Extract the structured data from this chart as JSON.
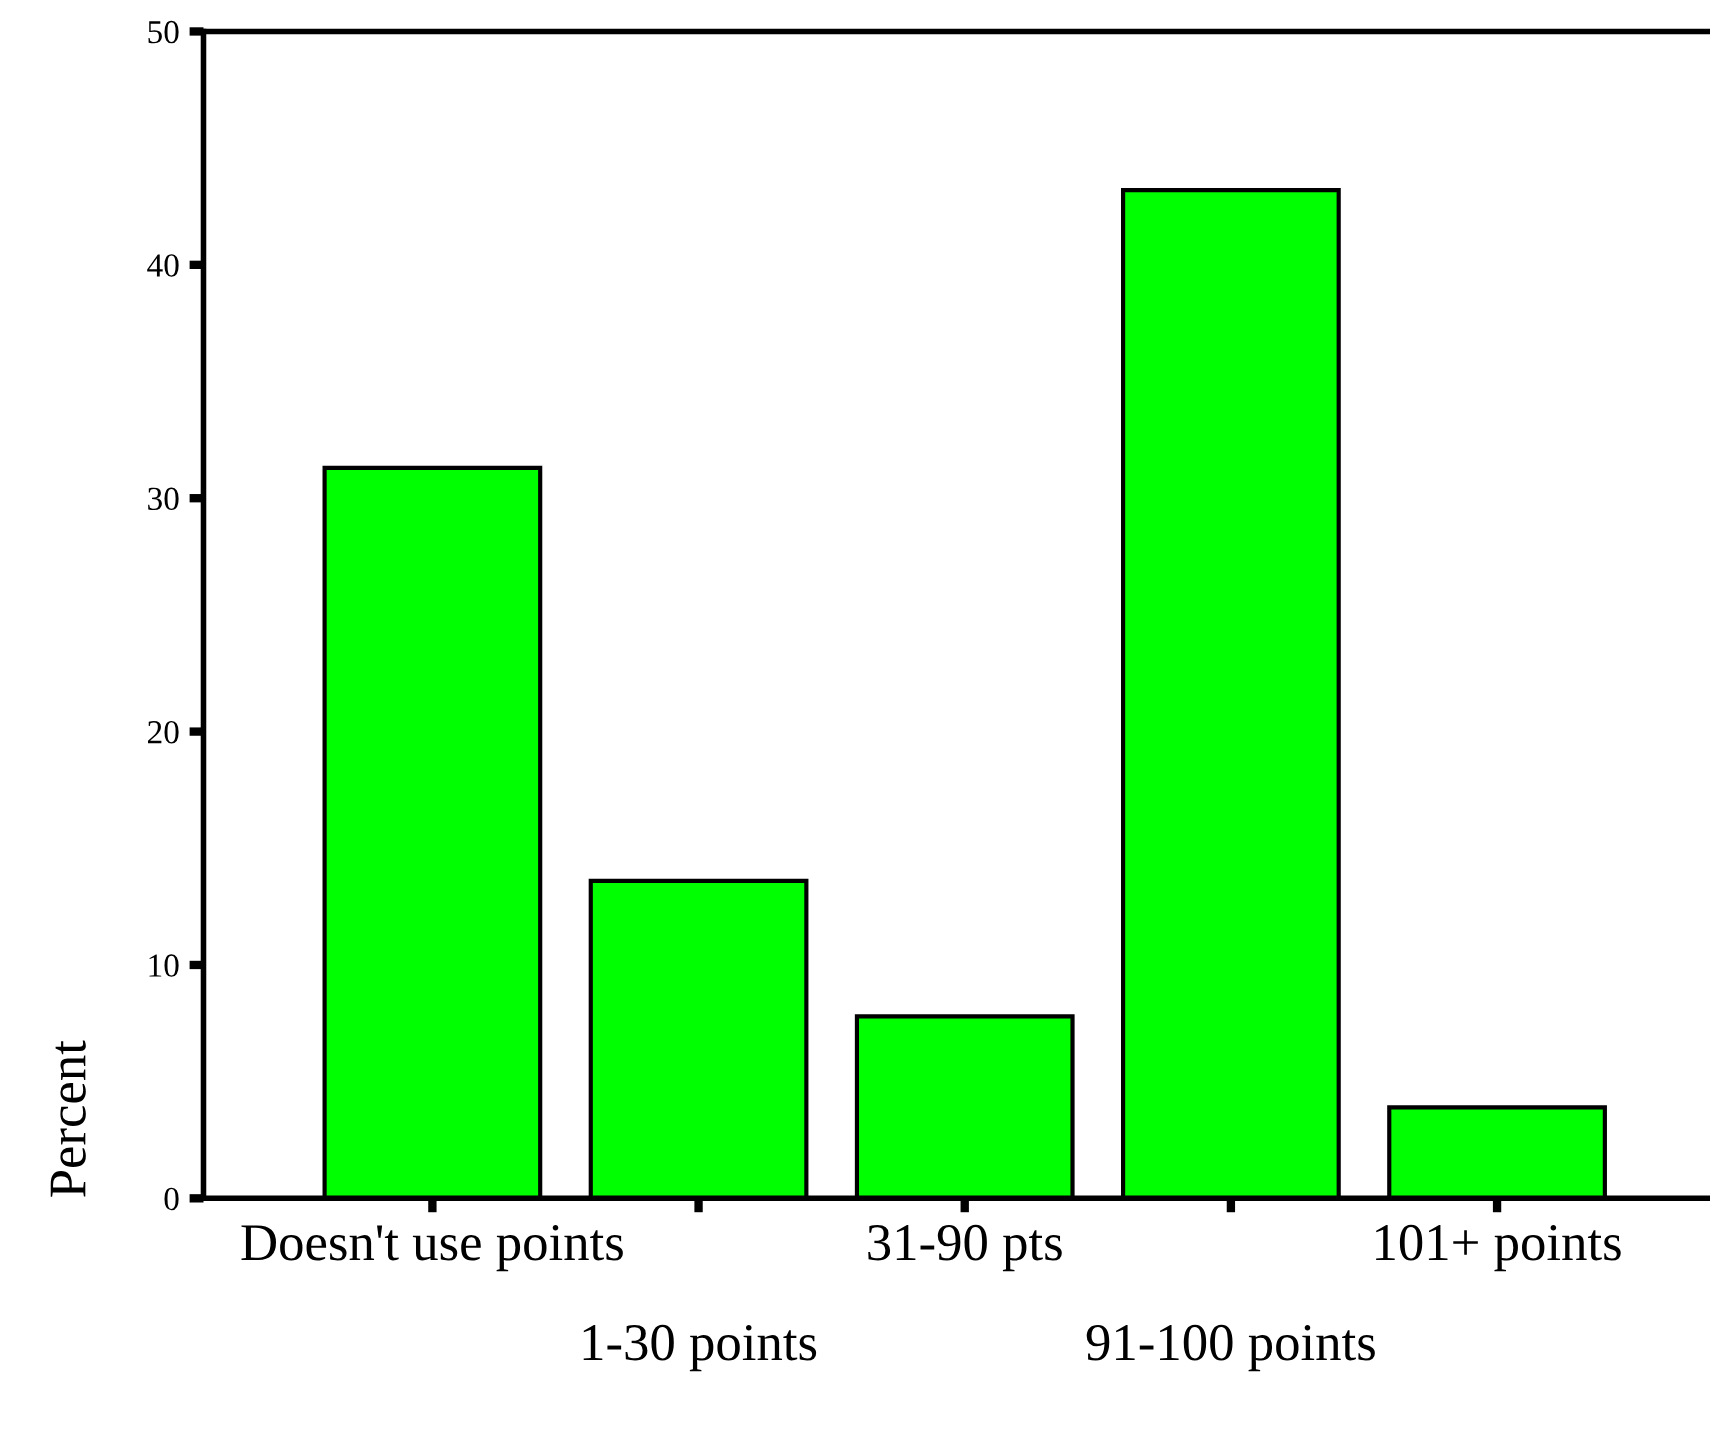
{
  "chart_data": {
    "type": "bar",
    "ylabel": "Percent",
    "categories": [
      "Doesn't use points",
      "1-30 points",
      "31-90 pts",
      "91-100 points",
      "101+ points"
    ],
    "values": [
      31.3,
      13.6,
      7.8,
      43.2,
      3.9
    ],
    "color": "#00ff00",
    "ylim": [
      0,
      50
    ],
    "yticks": [
      0,
      10,
      20,
      30,
      40,
      50
    ],
    "grid": false
  }
}
